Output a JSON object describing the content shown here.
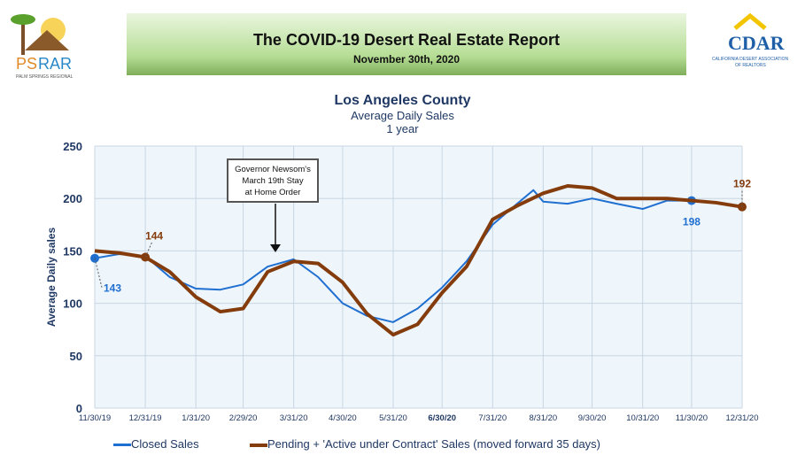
{
  "header": {
    "title": "The COVID-19 Desert Real Estate Report",
    "date": "November 30th, 2020",
    "logo_left": "PSRAR PALM SPRINGS REGIONAL ASSOCIATION of REALTORS",
    "logo_right": "CDAR CALIFORNIA DESERT ASSOCIATION OF REALTORS"
  },
  "chart_data": {
    "type": "line",
    "title": "Los Angeles County",
    "subtitle": "Average Daily Sales",
    "subtitle2": "1 year",
    "ylabel": "Average Daily sales",
    "ylim": [
      0,
      250
    ],
    "yticks": [
      0,
      50,
      100,
      150,
      200,
      250
    ],
    "xticks": [
      "11/30/19",
      "12/31/19",
      "1/31/20",
      "2/29/20",
      "3/31/20",
      "4/30/20",
      "5/31/20",
      "6/30/20",
      "7/31/20",
      "8/31/20",
      "9/30/20",
      "10/31/20",
      "11/30/20",
      "12/31/20"
    ],
    "grid": true,
    "legend": "bottom",
    "annotation": "Governor Newsom's March 19th Stay at Home Order",
    "series": [
      {
        "name": "Closed Sales",
        "color": "#1f6fd1",
        "x": [
          "11/30/19",
          "12/15/19",
          "12/31/19",
          "1/15/20",
          "1/31/20",
          "2/15/20",
          "2/29/20",
          "3/15/20",
          "3/31/20",
          "4/15/20",
          "4/30/20",
          "5/15/20",
          "5/31/20",
          "6/15/20",
          "6/30/20",
          "7/15/20",
          "7/31/20",
          "8/15/20",
          "8/25/20",
          "8/31/20",
          "9/15/20",
          "9/30/20",
          "10/15/20",
          "10/31/20",
          "11/15/20",
          "11/30/20"
        ],
        "values": [
          143,
          147,
          145,
          125,
          114,
          113,
          118,
          135,
          142,
          125,
          100,
          88,
          82,
          95,
          115,
          140,
          175,
          195,
          208,
          197,
          195,
          200,
          195,
          190,
          198,
          198
        ],
        "labels": [
          {
            "x": "11/30/19",
            "value": 143
          },
          {
            "x": "11/30/20",
            "value": 198
          }
        ]
      },
      {
        "name": "Pending + 'Active under Contract' Sales (moved forward 35 days)",
        "color": "#843c0c",
        "x": [
          "11/30/19",
          "12/15/19",
          "12/31/19",
          "1/15/20",
          "1/31/20",
          "2/15/20",
          "2/29/20",
          "3/15/20",
          "3/31/20",
          "4/15/20",
          "4/30/20",
          "5/15/20",
          "5/31/20",
          "6/15/20",
          "6/30/20",
          "7/15/20",
          "7/31/20",
          "8/15/20",
          "8/31/20",
          "9/15/20",
          "9/30/20",
          "10/15/20",
          "10/31/20",
          "11/15/20",
          "11/30/20",
          "12/15/20",
          "12/31/20"
        ],
        "values": [
          150,
          148,
          144,
          130,
          106,
          92,
          95,
          130,
          140,
          138,
          120,
          90,
          70,
          80,
          110,
          135,
          180,
          193,
          205,
          212,
          210,
          200,
          200,
          200,
          198,
          196,
          192
        ],
        "labels": [
          {
            "x": "12/31/19",
            "value": 144
          },
          {
            "x": "12/31/20",
            "value": 192
          }
        ]
      }
    ]
  }
}
